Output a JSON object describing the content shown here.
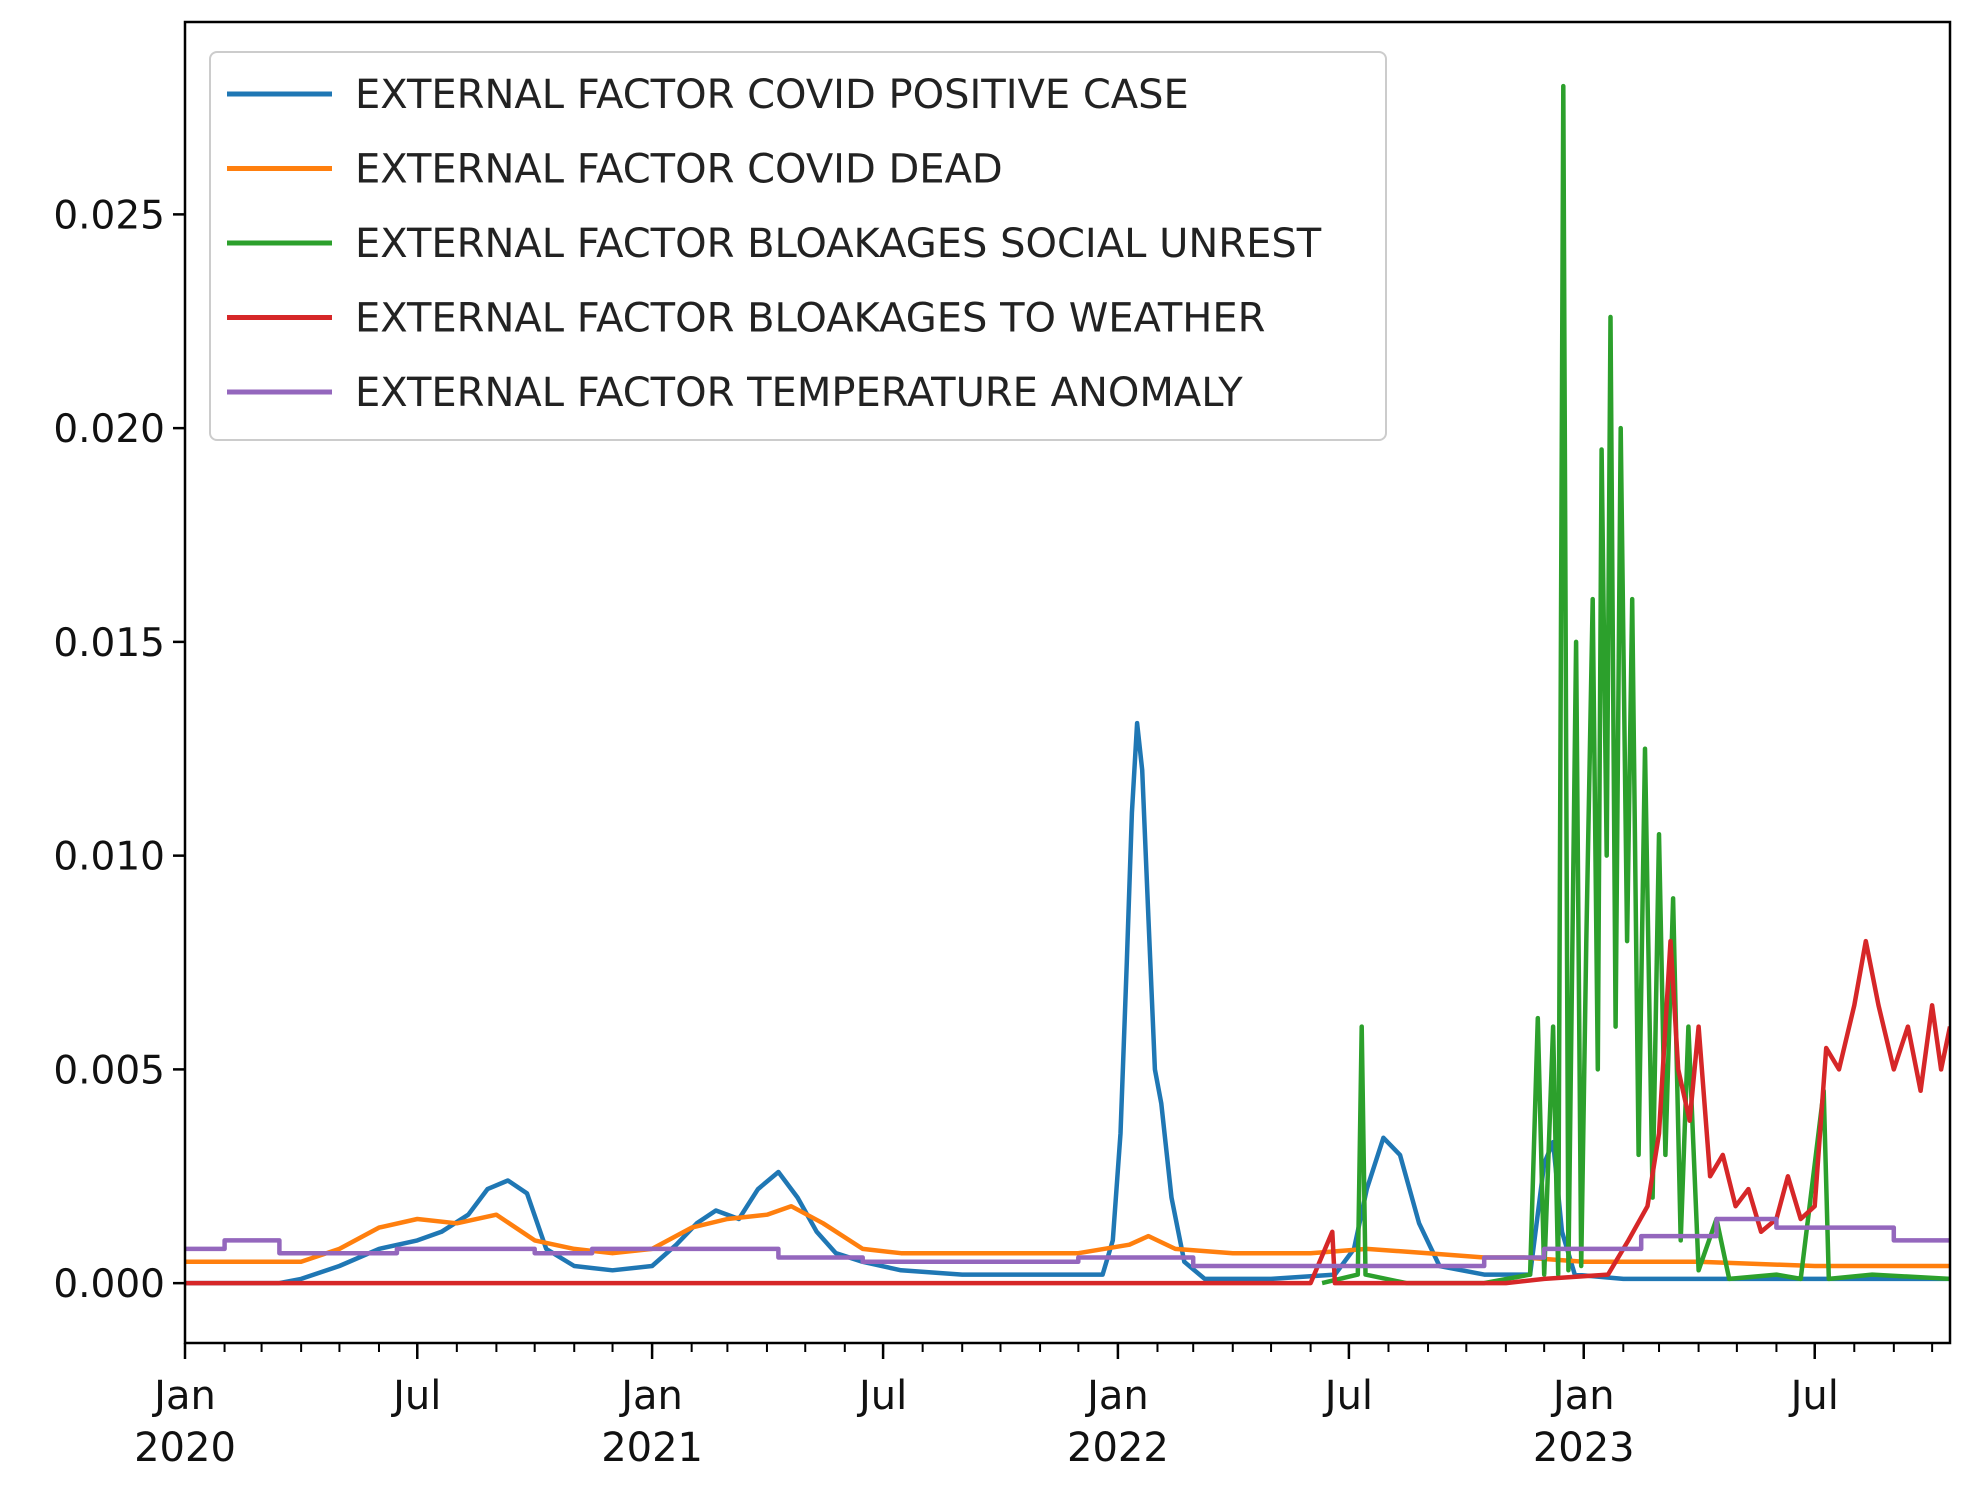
{
  "chart_data": {
    "type": "line",
    "title": "",
    "xlabel": "",
    "ylabel": "",
    "x_axis": {
      "type": "date",
      "range": [
        "2020-01-01",
        "2023-10-15"
      ],
      "tick_labels": [
        {
          "date": "2020-01-01",
          "month": "Jan",
          "year": "2020"
        },
        {
          "date": "2020-07-01",
          "month": "Jul",
          "year": ""
        },
        {
          "date": "2021-01-01",
          "month": "Jan",
          "year": "2021"
        },
        {
          "date": "2021-07-01",
          "month": "Jul",
          "year": ""
        },
        {
          "date": "2022-01-01",
          "month": "Jan",
          "year": "2022"
        },
        {
          "date": "2022-07-01",
          "month": "Jul",
          "year": ""
        },
        {
          "date": "2023-01-01",
          "month": "Jan",
          "year": "2023"
        },
        {
          "date": "2023-07-01",
          "month": "Jul",
          "year": ""
        }
      ]
    },
    "y_axis": {
      "range": [
        -0.0014,
        0.0295
      ],
      "tick_labels": [
        "0.000",
        "0.005",
        "0.010",
        "0.015",
        "0.020",
        "0.025"
      ]
    },
    "grid": false,
    "legend": {
      "placement": "upper-left"
    },
    "series": [
      {
        "name": "EXTERNAL FACTOR COVID POSITIVE CASE",
        "color": "#1f77b4",
        "points": [
          [
            "2020-01-01",
            0.0
          ],
          [
            "2020-03-15",
            0.0
          ],
          [
            "2020-04-01",
            0.0001
          ],
          [
            "2020-05-01",
            0.0004
          ],
          [
            "2020-06-01",
            0.0008
          ],
          [
            "2020-07-01",
            0.001
          ],
          [
            "2020-07-20",
            0.0012
          ],
          [
            "2020-08-10",
            0.0016
          ],
          [
            "2020-08-25",
            0.0022
          ],
          [
            "2020-09-10",
            0.0024
          ],
          [
            "2020-09-25",
            0.0021
          ],
          [
            "2020-10-10",
            0.0008
          ],
          [
            "2020-11-01",
            0.0004
          ],
          [
            "2020-12-01",
            0.0003
          ],
          [
            "2021-01-01",
            0.0004
          ],
          [
            "2021-01-20",
            0.0009
          ],
          [
            "2021-02-05",
            0.0014
          ],
          [
            "2021-02-20",
            0.0017
          ],
          [
            "2021-03-10",
            0.0015
          ],
          [
            "2021-03-25",
            0.0022
          ],
          [
            "2021-04-10",
            0.0026
          ],
          [
            "2021-04-25",
            0.002
          ],
          [
            "2021-05-10",
            0.0012
          ],
          [
            "2021-05-25",
            0.0007
          ],
          [
            "2021-06-15",
            0.0005
          ],
          [
            "2021-07-15",
            0.0003
          ],
          [
            "2021-09-01",
            0.0002
          ],
          [
            "2021-11-01",
            0.0002
          ],
          [
            "2021-12-20",
            0.0002
          ],
          [
            "2021-12-28",
            0.001
          ],
          [
            "2022-01-03",
            0.0035
          ],
          [
            "2022-01-08",
            0.0075
          ],
          [
            "2022-01-12",
            0.011
          ],
          [
            "2022-01-16",
            0.0131
          ],
          [
            "2022-01-20",
            0.012
          ],
          [
            "2022-01-25",
            0.0085
          ],
          [
            "2022-01-30",
            0.005
          ],
          [
            "2022-02-04",
            0.0042
          ],
          [
            "2022-02-12",
            0.002
          ],
          [
            "2022-02-22",
            0.0005
          ],
          [
            "2022-03-10",
            0.0001
          ],
          [
            "2022-05-01",
            0.0001
          ],
          [
            "2022-06-20",
            0.0002
          ],
          [
            "2022-07-05",
            0.0008
          ],
          [
            "2022-07-15",
            0.0022
          ],
          [
            "2022-07-28",
            0.0034
          ],
          [
            "2022-08-10",
            0.003
          ],
          [
            "2022-08-25",
            0.0014
          ],
          [
            "2022-09-10",
            0.0004
          ],
          [
            "2022-10-15",
            0.0002
          ],
          [
            "2022-11-20",
            0.0002
          ],
          [
            "2022-12-01",
            0.0028
          ],
          [
            "2022-12-08",
            0.0033
          ],
          [
            "2022-12-15",
            0.0012
          ],
          [
            "2022-12-25",
            0.0002
          ],
          [
            "2023-02-01",
            0.0001
          ],
          [
            "2023-05-01",
            0.0001
          ],
          [
            "2023-08-01",
            0.0001
          ],
          [
            "2023-10-15",
            0.0001
          ]
        ]
      },
      {
        "name": "EXTERNAL FACTOR COVID DEAD",
        "color": "#ff7f0e",
        "points": [
          [
            "2020-01-01",
            0.0005
          ],
          [
            "2020-04-01",
            0.0005
          ],
          [
            "2020-05-01",
            0.0008
          ],
          [
            "2020-06-01",
            0.0013
          ],
          [
            "2020-07-01",
            0.0015
          ],
          [
            "2020-08-01",
            0.0014
          ],
          [
            "2020-09-01",
            0.0016
          ],
          [
            "2020-10-01",
            0.001
          ],
          [
            "2020-11-01",
            0.0008
          ],
          [
            "2020-12-01",
            0.0007
          ],
          [
            "2021-01-01",
            0.0008
          ],
          [
            "2021-02-01",
            0.0013
          ],
          [
            "2021-03-01",
            0.0015
          ],
          [
            "2021-04-01",
            0.0016
          ],
          [
            "2021-04-20",
            0.0018
          ],
          [
            "2021-05-15",
            0.0014
          ],
          [
            "2021-06-15",
            0.0008
          ],
          [
            "2021-07-15",
            0.0007
          ],
          [
            "2021-09-01",
            0.0007
          ],
          [
            "2021-12-01",
            0.0007
          ],
          [
            "2022-01-10",
            0.0009
          ],
          [
            "2022-01-25",
            0.0011
          ],
          [
            "2022-02-15",
            0.0008
          ],
          [
            "2022-04-01",
            0.0007
          ],
          [
            "2022-06-01",
            0.0007
          ],
          [
            "2022-07-15",
            0.0008
          ],
          [
            "2022-09-01",
            0.0007
          ],
          [
            "2022-10-15",
            0.0006
          ],
          [
            "2022-11-15",
            0.0006
          ],
          [
            "2023-01-01",
            0.0005
          ],
          [
            "2023-04-01",
            0.0005
          ],
          [
            "2023-07-01",
            0.0004
          ],
          [
            "2023-10-15",
            0.0004
          ]
        ]
      },
      {
        "name": "EXTERNAL FACTOR BLOAKAGES SOCIAL UNREST",
        "color": "#2ca02c",
        "points": [
          [
            "2022-06-10",
            0.0
          ],
          [
            "2022-07-08",
            0.0002
          ],
          [
            "2022-07-11",
            0.006
          ],
          [
            "2022-07-14",
            0.0002
          ],
          [
            "2022-08-15",
            0.0
          ],
          [
            "2022-10-15",
            0.0
          ],
          [
            "2022-11-20",
            0.0002
          ],
          [
            "2022-11-26",
            0.0062
          ],
          [
            "2022-12-01",
            0.0002
          ],
          [
            "2022-12-08",
            0.006
          ],
          [
            "2022-12-12",
            0.0002
          ],
          [
            "2022-12-16",
            0.028
          ],
          [
            "2022-12-20",
            0.0003
          ],
          [
            "2022-12-26",
            0.015
          ],
          [
            "2022-12-30",
            0.0004
          ],
          [
            "2023-01-03",
            0.008
          ],
          [
            "2023-01-08",
            0.016
          ],
          [
            "2023-01-12",
            0.005
          ],
          [
            "2023-01-15",
            0.0195
          ],
          [
            "2023-01-19",
            0.01
          ],
          [
            "2023-01-22",
            0.0226
          ],
          [
            "2023-01-26",
            0.006
          ],
          [
            "2023-01-30",
            0.02
          ],
          [
            "2023-02-04",
            0.008
          ],
          [
            "2023-02-08",
            0.016
          ],
          [
            "2023-02-13",
            0.003
          ],
          [
            "2023-02-18",
            0.0125
          ],
          [
            "2023-02-24",
            0.002
          ],
          [
            "2023-03-01",
            0.0105
          ],
          [
            "2023-03-06",
            0.003
          ],
          [
            "2023-03-12",
            0.009
          ],
          [
            "2023-03-18",
            0.001
          ],
          [
            "2023-03-24",
            0.006
          ],
          [
            "2023-04-01",
            0.0003
          ],
          [
            "2023-04-15",
            0.0015
          ],
          [
            "2023-04-25",
            0.0001
          ],
          [
            "2023-06-01",
            0.0002
          ],
          [
            "2023-06-20",
            0.0001
          ],
          [
            "2023-07-08",
            0.0045
          ],
          [
            "2023-07-12",
            0.0001
          ],
          [
            "2023-08-15",
            0.0002
          ],
          [
            "2023-10-15",
            0.0001
          ]
        ]
      },
      {
        "name": "EXTERNAL FACTOR BLOAKAGES TO WEATHER",
        "color": "#d62728",
        "points": [
          [
            "2020-01-01",
            0.0
          ],
          [
            "2022-06-01",
            0.0
          ],
          [
            "2022-06-18",
            0.0012
          ],
          [
            "2022-06-20",
            0.0
          ],
          [
            "2022-11-01",
            0.0
          ],
          [
            "2022-12-01",
            0.0001
          ],
          [
            "2023-01-20",
            0.0002
          ],
          [
            "2023-02-05",
            0.001
          ],
          [
            "2023-02-20",
            0.0018
          ],
          [
            "2023-03-01",
            0.0035
          ],
          [
            "2023-03-10",
            0.008
          ],
          [
            "2023-03-16",
            0.005
          ],
          [
            "2023-03-25",
            0.0038
          ],
          [
            "2023-04-01",
            0.006
          ],
          [
            "2023-04-10",
            0.0025
          ],
          [
            "2023-04-20",
            0.003
          ],
          [
            "2023-04-30",
            0.0018
          ],
          [
            "2023-05-10",
            0.0022
          ],
          [
            "2023-05-20",
            0.0012
          ],
          [
            "2023-06-01",
            0.0015
          ],
          [
            "2023-06-10",
            0.0025
          ],
          [
            "2023-06-20",
            0.0015
          ],
          [
            "2023-07-01",
            0.0018
          ],
          [
            "2023-07-10",
            0.0055
          ],
          [
            "2023-07-20",
            0.005
          ],
          [
            "2023-08-01",
            0.0065
          ],
          [
            "2023-08-10",
            0.008
          ],
          [
            "2023-08-20",
            0.0065
          ],
          [
            "2023-09-01",
            0.005
          ],
          [
            "2023-09-12",
            0.006
          ],
          [
            "2023-09-22",
            0.0045
          ],
          [
            "2023-10-01",
            0.0065
          ],
          [
            "2023-10-08",
            0.005
          ],
          [
            "2023-10-15",
            0.006
          ]
        ]
      },
      {
        "name": "EXTERNAL FACTOR TEMPERATURE ANOMALY",
        "color": "#9467bd",
        "points": [
          [
            "2020-01-01",
            0.0008
          ],
          [
            "2020-02-01",
            0.0008
          ],
          [
            "2020-02-01",
            0.001
          ],
          [
            "2020-03-15",
            0.001
          ],
          [
            "2020-03-15",
            0.0007
          ],
          [
            "2020-06-15",
            0.0007
          ],
          [
            "2020-06-15",
            0.0008
          ],
          [
            "2020-10-01",
            0.0008
          ],
          [
            "2020-10-01",
            0.0007
          ],
          [
            "2020-11-15",
            0.0007
          ],
          [
            "2020-11-15",
            0.0008
          ],
          [
            "2021-04-10",
            0.0008
          ],
          [
            "2021-04-10",
            0.0006
          ],
          [
            "2021-06-15",
            0.0006
          ],
          [
            "2021-06-15",
            0.0005
          ],
          [
            "2021-12-01",
            0.0005
          ],
          [
            "2021-12-01",
            0.0006
          ],
          [
            "2022-03-01",
            0.0006
          ],
          [
            "2022-03-01",
            0.0004
          ],
          [
            "2022-10-15",
            0.0004
          ],
          [
            "2022-10-15",
            0.0006
          ],
          [
            "2022-12-01",
            0.0006
          ],
          [
            "2022-12-01",
            0.0008
          ],
          [
            "2023-02-15",
            0.0008
          ],
          [
            "2023-02-15",
            0.0011
          ],
          [
            "2023-04-15",
            0.0011
          ],
          [
            "2023-04-15",
            0.0015
          ],
          [
            "2023-06-01",
            0.0015
          ],
          [
            "2023-06-01",
            0.0013
          ],
          [
            "2023-09-01",
            0.0013
          ],
          [
            "2023-09-01",
            0.001
          ],
          [
            "2023-10-15",
            0.001
          ]
        ]
      }
    ]
  }
}
